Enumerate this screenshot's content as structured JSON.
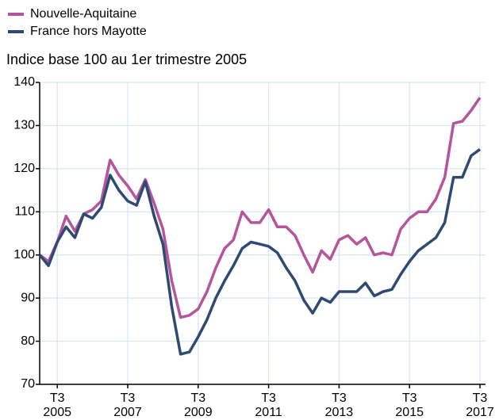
{
  "chart_data": {
    "type": "line",
    "subtitle": "Indice base 100 au 1er trimestre 2005",
    "categories": [
      null,
      null,
      [
        "T3",
        "2005"
      ],
      null,
      null,
      null,
      null,
      null,
      null,
      null,
      [
        "T3",
        "2007"
      ],
      null,
      null,
      null,
      null,
      null,
      null,
      null,
      [
        "T3",
        "2009"
      ],
      null,
      null,
      null,
      null,
      null,
      null,
      null,
      [
        "T3",
        "2011"
      ],
      null,
      null,
      null,
      null,
      null,
      null,
      null,
      [
        "T3",
        "2013"
      ],
      null,
      null,
      null,
      null,
      null,
      null,
      null,
      [
        "T3",
        "2015"
      ],
      null,
      null,
      null,
      null,
      null,
      null,
      null,
      [
        "T3",
        "2017"
      ]
    ],
    "series": [
      {
        "name": "Nouvelle-Aquitaine",
        "color": "#b5559c",
        "values": [
          100,
          98.5,
          103,
          109,
          105.5,
          109.5,
          110.5,
          112.5,
          122,
          118.5,
          116,
          113,
          117.5,
          112,
          106,
          94,
          85.5,
          86,
          87.5,
          91.5,
          97,
          101.5,
          103.5,
          110,
          107.5,
          107.5,
          110.5,
          106.5,
          106.5,
          104.5,
          100,
          96,
          101,
          99,
          103.5,
          104.5,
          102.5,
          104,
          100,
          100.5,
          100,
          106,
          108.5,
          110,
          110,
          113,
          118,
          130.5,
          131,
          133.5,
          136.5
        ]
      },
      {
        "name": "France hors Mayotte",
        "color": "#2e4a73",
        "values": [
          100,
          97.5,
          103,
          106.5,
          104,
          109.5,
          108.5,
          111,
          118.5,
          115,
          112.5,
          111.5,
          117,
          109,
          102.5,
          88,
          77,
          77.5,
          81,
          85,
          90,
          94,
          97.5,
          101.5,
          103,
          102.5,
          102,
          100.5,
          97,
          94,
          89.5,
          86.5,
          90,
          89,
          91.5,
          91.5,
          91.5,
          93.5,
          90.5,
          91.5,
          92,
          95.5,
          98.5,
          101,
          102.5,
          104,
          107.5,
          118,
          118,
          123,
          124.5
        ]
      }
    ],
    "ylim": [
      70,
      140
    ],
    "yticks": [
      70,
      80,
      90,
      100,
      110,
      120,
      130,
      140
    ],
    "grid": true
  }
}
